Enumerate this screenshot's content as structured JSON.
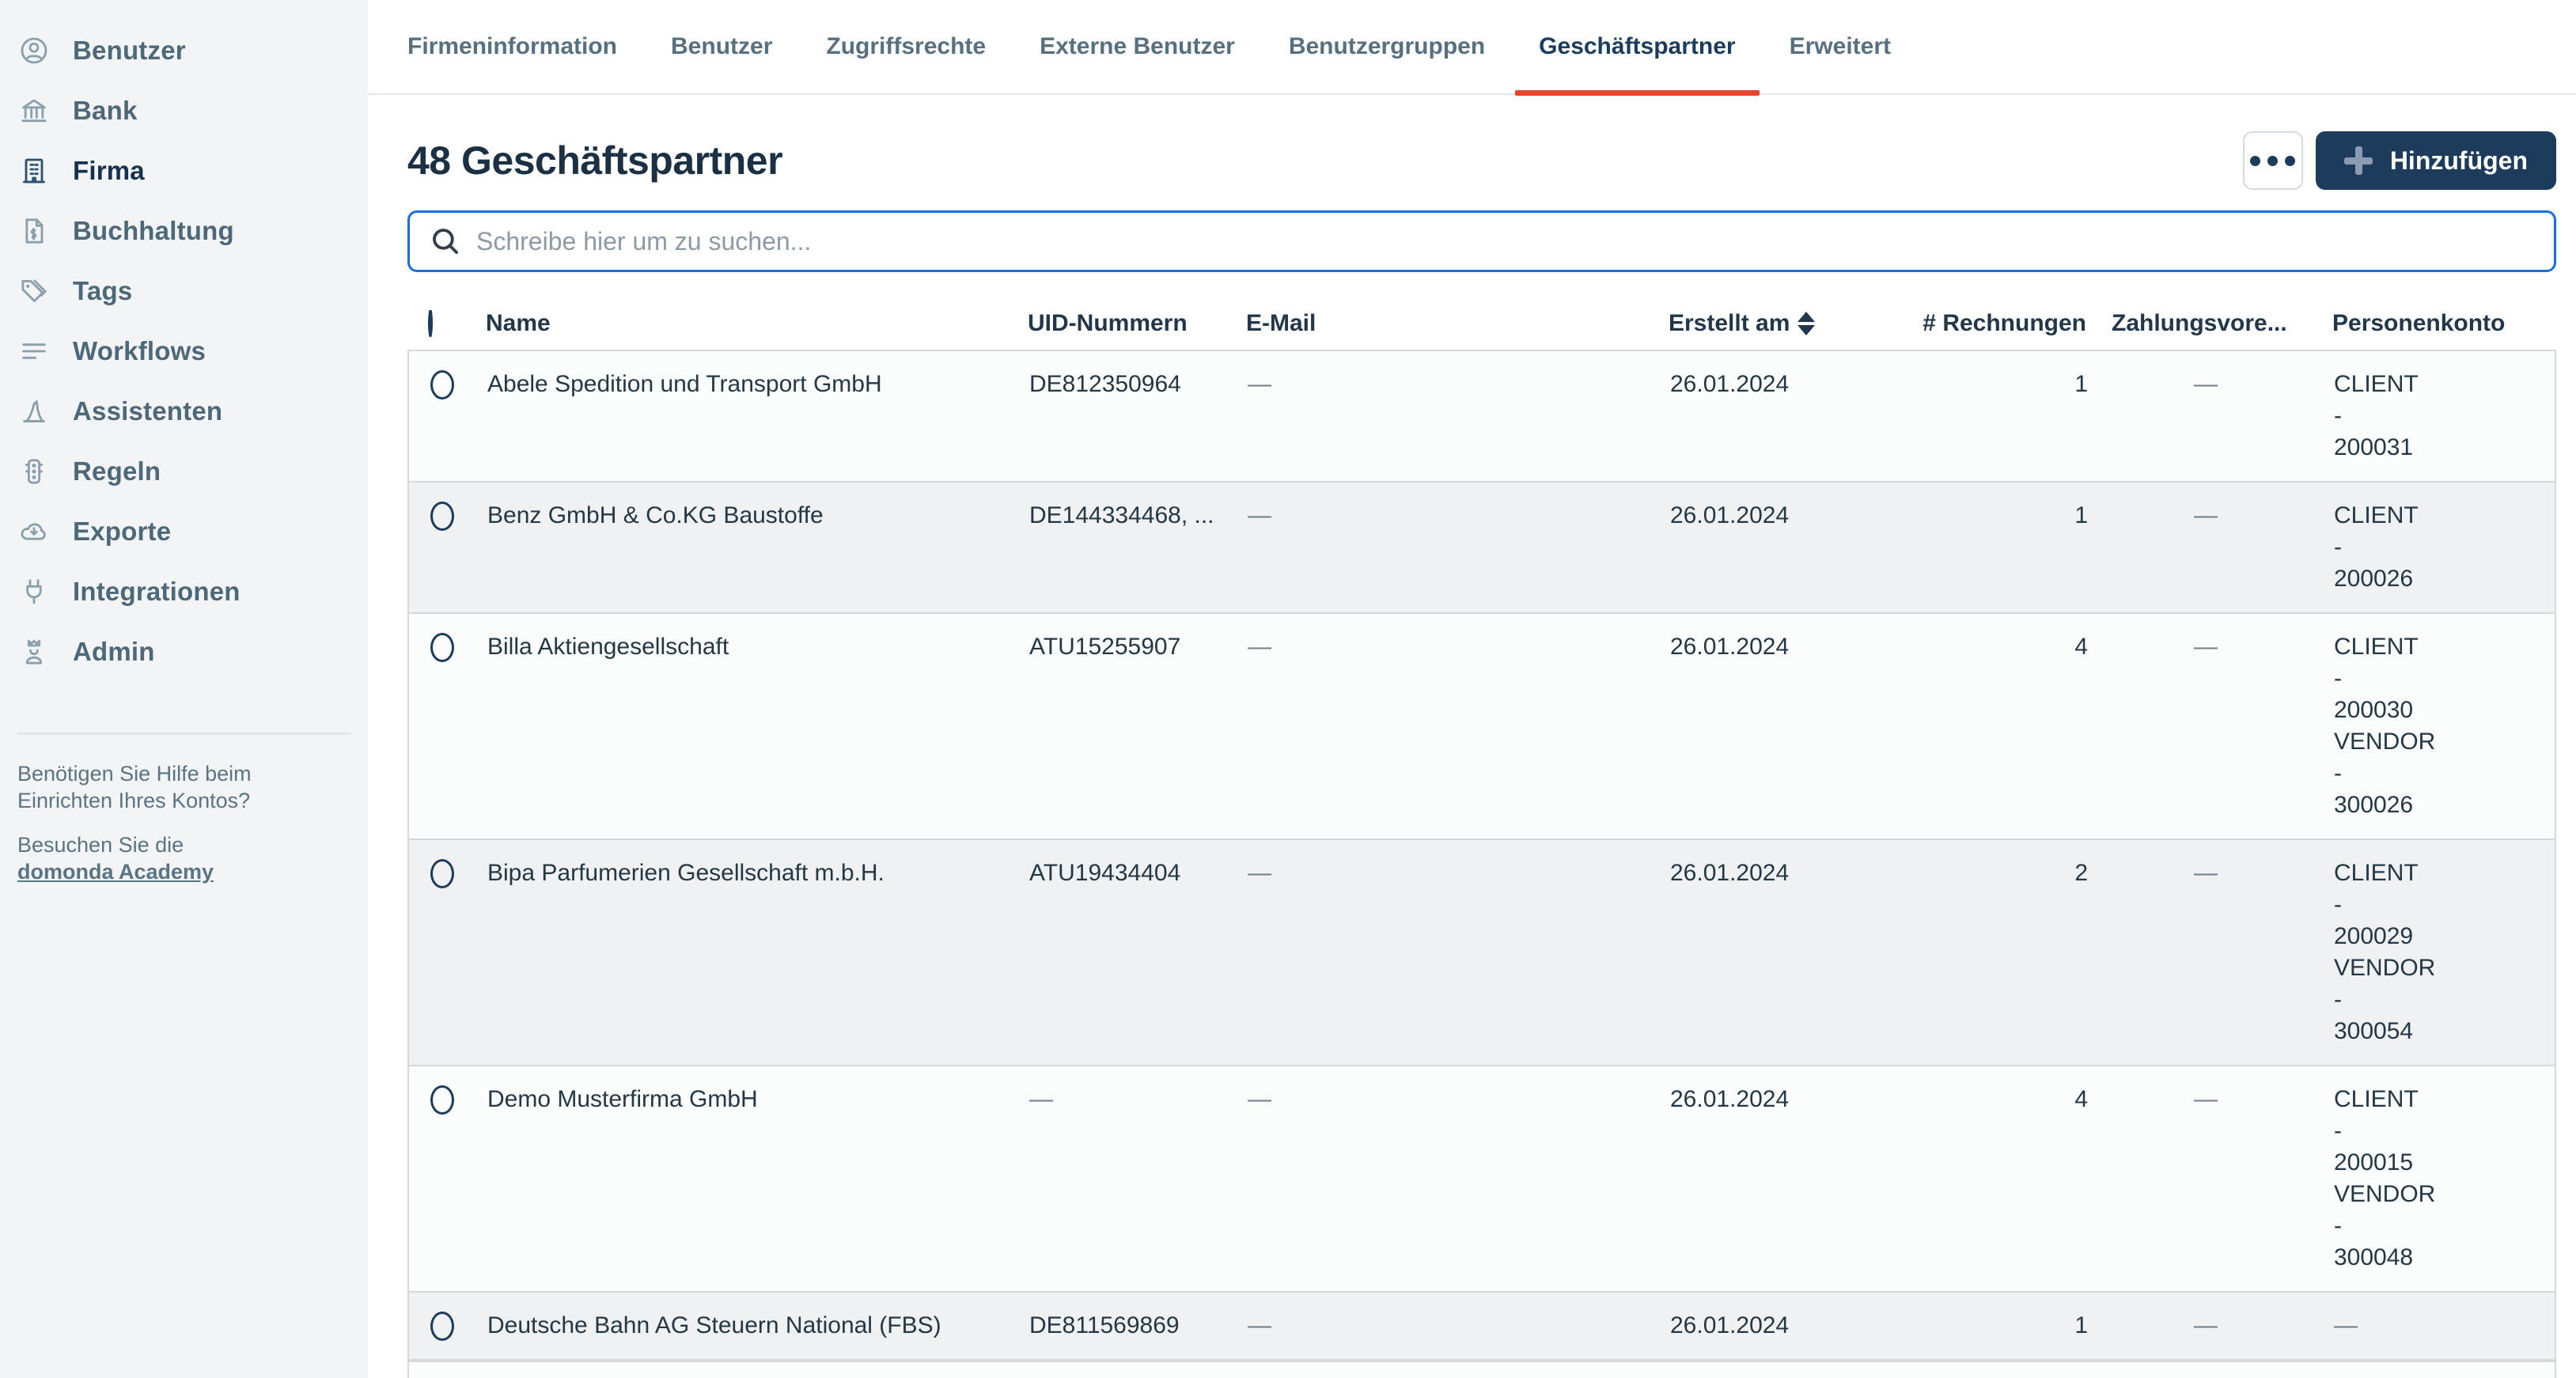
{
  "sidebar": {
    "items": [
      {
        "label": "Benutzer",
        "icon": "user-circle-icon",
        "active": false
      },
      {
        "label": "Bank",
        "icon": "bank-icon",
        "active": false
      },
      {
        "label": "Firma",
        "icon": "building-icon",
        "active": true
      },
      {
        "label": "Buchhaltung",
        "icon": "invoice-icon",
        "active": false
      },
      {
        "label": "Tags",
        "icon": "tag-icon",
        "active": false
      },
      {
        "label": "Workflows",
        "icon": "list-lines-icon",
        "active": false
      },
      {
        "label": "Assistenten",
        "icon": "wizard-hat-icon",
        "active": false
      },
      {
        "label": "Regeln",
        "icon": "traffic-light-icon",
        "active": false
      },
      {
        "label": "Exporte",
        "icon": "cloud-download-icon",
        "active": false
      },
      {
        "label": "Integrationen",
        "icon": "plug-icon",
        "active": false
      },
      {
        "label": "Admin",
        "icon": "admin-crown-icon",
        "active": false
      }
    ],
    "help": {
      "question": "Benötigen Sie Hilfe beim Einrichten Ihres Kontos?",
      "visit": "Besuchen Sie die",
      "link": "domonda Academy"
    }
  },
  "tabs": [
    {
      "label": "Firmeninformation",
      "active": false
    },
    {
      "label": "Benutzer",
      "active": false
    },
    {
      "label": "Zugriffsrechte",
      "active": false
    },
    {
      "label": "Externe Benutzer",
      "active": false
    },
    {
      "label": "Benutzergruppen",
      "active": false
    },
    {
      "label": "Geschäftspartner",
      "active": true
    },
    {
      "label": "Erweitert",
      "active": false
    }
  ],
  "header": {
    "title": "48 Geschäftspartner",
    "add_label": "Hinzufügen",
    "more_icon": "ellipsis-icon",
    "add_icon": "plus-icon"
  },
  "search": {
    "placeholder": "Schreibe hier um zu suchen...",
    "icon": "search-icon"
  },
  "table": {
    "columns": [
      {
        "label": "",
        "key": "checkbox"
      },
      {
        "label": "Name",
        "key": "name"
      },
      {
        "label": "UID-Nummern",
        "key": "uid"
      },
      {
        "label": "E-Mail",
        "key": "email"
      },
      {
        "label": "Erstellt am",
        "key": "created",
        "sort_icon": "sort-arrows-icon"
      },
      {
        "label": "# Rechnungen",
        "key": "invoices"
      },
      {
        "label": "Zahlungsvore...",
        "key": "payment_templates"
      },
      {
        "label": "Personenkonto",
        "key": "personenkonto"
      }
    ],
    "rows": [
      {
        "name": "Abele Spedition und Transport GmbH",
        "uid": "DE812350964",
        "email": "—",
        "created": "26.01.2024",
        "invoices": "1",
        "payment_templates": "—",
        "personenkonto": [
          "CLIENT",
          "-",
          "200031"
        ]
      },
      {
        "name": "Benz GmbH & Co.KG Baustoffe",
        "uid": "DE144334468, ...",
        "email": "—",
        "created": "26.01.2024",
        "invoices": "1",
        "payment_templates": "—",
        "personenkonto": [
          "CLIENT",
          "-",
          "200026"
        ]
      },
      {
        "name": "Billa Aktiengesellschaft",
        "uid": "ATU15255907",
        "email": "—",
        "created": "26.01.2024",
        "invoices": "4",
        "payment_templates": "—",
        "personenkonto": [
          "CLIENT",
          "-",
          "200030",
          "VENDOR",
          "-",
          "300026"
        ]
      },
      {
        "name": "Bipa Parfumerien Gesellschaft m.b.H.",
        "uid": "ATU19434404",
        "email": "—",
        "created": "26.01.2024",
        "invoices": "2",
        "payment_templates": "—",
        "personenkonto": [
          "CLIENT",
          "-",
          "200029",
          "VENDOR",
          "-",
          "300054"
        ]
      },
      {
        "name": "Demo Musterfirma GmbH",
        "uid": "—",
        "email": "—",
        "created": "26.01.2024",
        "invoices": "4",
        "payment_templates": "—",
        "personenkonto": [
          "CLIENT",
          "-",
          "200015",
          "VENDOR",
          "-",
          "300048"
        ]
      },
      {
        "name": "Deutsche Bahn AG Steuern National (FBS)",
        "uid": "DE811569869",
        "email": "—",
        "created": "26.01.2024",
        "invoices": "1",
        "payment_templates": "—",
        "personenkonto": [
          "—"
        ]
      }
    ]
  },
  "colors": {
    "accent_red": "#e8432d",
    "navy": "#1d3c5c",
    "search_border_blue": "#1a6fe0",
    "sidebar_bg": "#f2f4f5",
    "row_alt_bg": "#eff1f2"
  }
}
